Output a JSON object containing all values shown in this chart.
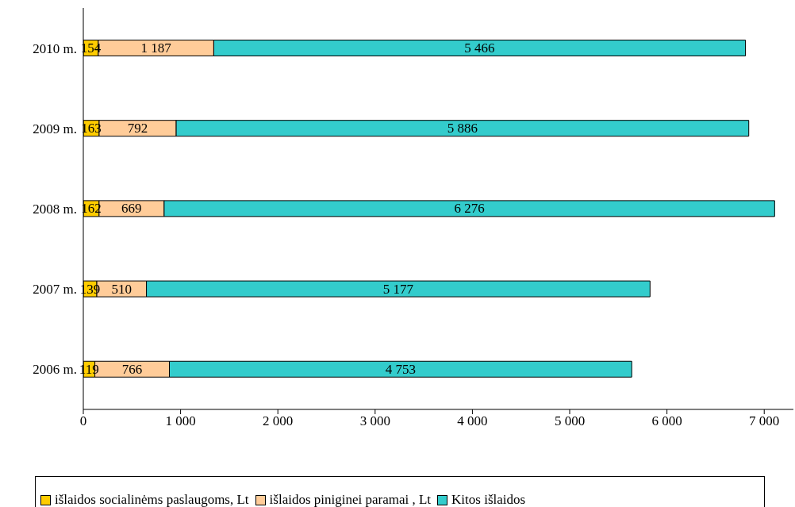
{
  "chart_data": {
    "type": "bar",
    "orientation": "horizontal",
    "stacked": true,
    "categories": [
      "2010 m.",
      "2009 m.",
      "2008 m.",
      "2007 m.",
      "2006 m."
    ],
    "series": [
      {
        "name": "išlaidos socialinėms paslaugoms, Lt",
        "color": "#ffcc00",
        "values": [
          154,
          163,
          162,
          139,
          119
        ],
        "value_labels": [
          "154",
          "163",
          "162",
          "139",
          "119"
        ]
      },
      {
        "name": "išlaidos piniginei paramai , Lt",
        "color": "#ffcc99",
        "values": [
          1187,
          792,
          669,
          510,
          766
        ],
        "value_labels": [
          "1 187",
          "792",
          "669",
          "510",
          "766"
        ]
      },
      {
        "name": "Kitos išlaidos",
        "color": "#33cccc",
        "values": [
          5466,
          5886,
          6276,
          5177,
          4753
        ],
        "value_labels": [
          "5 466",
          "5 886",
          "6 276",
          "5 177",
          "4 753"
        ]
      }
    ],
    "xlim": [
      0,
      7300
    ],
    "xticks": [
      0,
      {
        "value": 1000,
        "label": "1 000"
      },
      {
        "value": 2000,
        "label": "2 000"
      },
      {
        "value": 3000,
        "label": "3 000"
      },
      {
        "value": 4000,
        "label": "4 000"
      },
      {
        "value": 5000,
        "label": "5 000"
      },
      {
        "value": 6000,
        "label": "6 000"
      },
      {
        "value": 7000,
        "label": "7 000"
      }
    ],
    "grid": false,
    "legend": "bottom"
  }
}
